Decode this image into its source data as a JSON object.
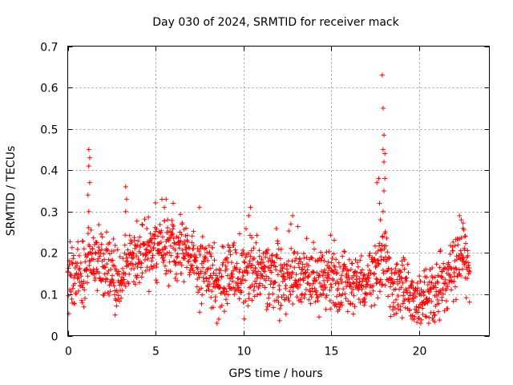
{
  "chart_data": {
    "type": "scatter",
    "title": "Day 030 of 2024, SRMTID for receiver mack",
    "xlabel": "GPS time / hours",
    "ylabel": "SRMTID / TECUs",
    "xlim": [
      0,
      24
    ],
    "ylim": [
      0,
      0.7
    ],
    "xticks": [
      0,
      5,
      10,
      15,
      20
    ],
    "yticks": [
      0,
      0.1,
      0.2,
      0.3,
      0.4,
      0.5,
      0.6,
      0.7
    ],
    "xtick_labels": [
      "0",
      "5",
      "10",
      "15",
      "20"
    ],
    "ytick_labels": [
      "0",
      "0.1",
      "0.2",
      "0.3",
      "0.4",
      "0.5",
      "0.6",
      "0.7"
    ],
    "grid": true,
    "marker": "+",
    "color": "#ff0000",
    "x_extent": [
      0,
      22.9
    ],
    "median_trend": [
      [
        0.0,
        0.13
      ],
      [
        1.0,
        0.15
      ],
      [
        1.3,
        0.2
      ],
      [
        2.0,
        0.17
      ],
      [
        3.0,
        0.13
      ],
      [
        3.3,
        0.18
      ],
      [
        4.0,
        0.19
      ],
      [
        5.0,
        0.21
      ],
      [
        6.0,
        0.22
      ],
      [
        7.0,
        0.19
      ],
      [
        8.0,
        0.16
      ],
      [
        8.5,
        0.13
      ],
      [
        9.0,
        0.14
      ],
      [
        10.0,
        0.16
      ],
      [
        11.0,
        0.15
      ],
      [
        12.0,
        0.14
      ],
      [
        13.0,
        0.15
      ],
      [
        14.0,
        0.14
      ],
      [
        15.0,
        0.14
      ],
      [
        16.0,
        0.13
      ],
      [
        17.0,
        0.13
      ],
      [
        17.6,
        0.17
      ],
      [
        18.0,
        0.19
      ],
      [
        18.5,
        0.12
      ],
      [
        19.0,
        0.12
      ],
      [
        19.5,
        0.1
      ],
      [
        20.0,
        0.09
      ],
      [
        21.0,
        0.1
      ],
      [
        22.0,
        0.15
      ],
      [
        22.5,
        0.2
      ],
      [
        22.9,
        0.15
      ]
    ],
    "spike_points": [
      [
        1.2,
        0.45
      ],
      [
        1.25,
        0.43
      ],
      [
        1.2,
        0.41
      ],
      [
        1.25,
        0.37
      ],
      [
        1.15,
        0.34
      ],
      [
        1.2,
        0.3
      ],
      [
        3.3,
        0.36
      ],
      [
        3.35,
        0.33
      ],
      [
        3.3,
        0.3
      ],
      [
        5.6,
        0.33
      ],
      [
        5.5,
        0.31
      ],
      [
        6.0,
        0.32
      ],
      [
        7.5,
        0.31
      ],
      [
        10.4,
        0.31
      ],
      [
        10.3,
        0.29
      ],
      [
        12.8,
        0.29
      ],
      [
        12.7,
        0.27
      ],
      [
        17.6,
        0.37
      ],
      [
        17.7,
        0.38
      ],
      [
        17.75,
        0.32
      ],
      [
        17.8,
        0.28
      ],
      [
        17.9,
        0.63
      ],
      [
        17.95,
        0.55
      ],
      [
        18.0,
        0.485
      ],
      [
        17.95,
        0.45
      ],
      [
        18.05,
        0.44
      ],
      [
        18.0,
        0.42
      ],
      [
        18.05,
        0.38
      ],
      [
        18.0,
        0.35
      ],
      [
        17.95,
        0.3
      ],
      [
        22.3,
        0.29
      ],
      [
        22.4,
        0.28
      ],
      [
        22.5,
        0.26
      ],
      [
        22.6,
        0.24
      ],
      [
        8.5,
        0.03
      ],
      [
        8.6,
        0.04
      ],
      [
        19.6,
        0.04
      ],
      [
        20.9,
        0.05
      ],
      [
        2.7,
        0.05
      ]
    ]
  }
}
